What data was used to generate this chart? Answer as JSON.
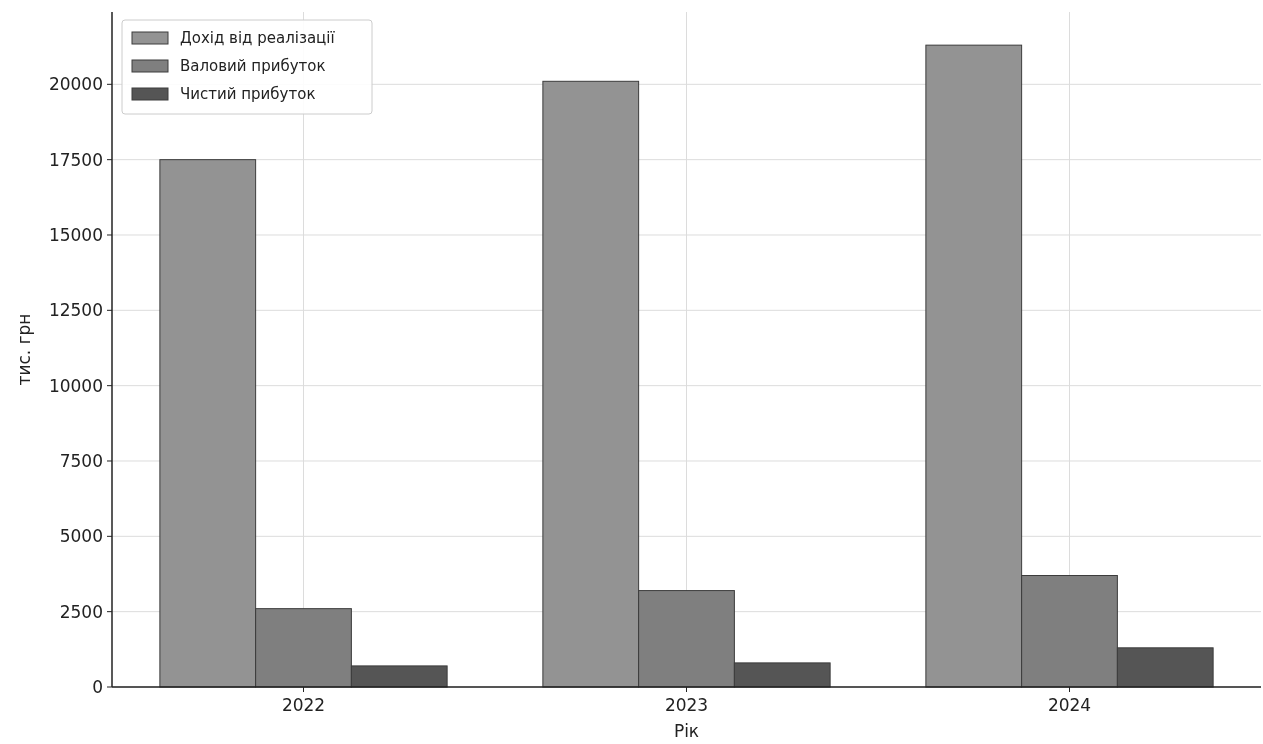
{
  "chart_data": {
    "type": "bar",
    "xlabel": "Рік",
    "ylabel": "тис. грн",
    "categories": [
      "2022",
      "2023",
      "2024"
    ],
    "series": [
      {
        "name": "Дохід від реалізації",
        "color": "#939393",
        "values": [
          17500,
          20100,
          21300
        ]
      },
      {
        "name": "Валовий прибуток",
        "color": "#7f7f7f",
        "values": [
          2600,
          3200,
          3700
        ]
      },
      {
        "name": "Чистий прибуток",
        "color": "#555555",
        "values": [
          700,
          800,
          1300
        ]
      }
    ],
    "ylim": [
      0,
      22400
    ],
    "yticks": [
      0,
      2500,
      5000,
      7500,
      10000,
      12500,
      15000,
      17500,
      20000
    ],
    "grid": true,
    "legend": "top left"
  }
}
